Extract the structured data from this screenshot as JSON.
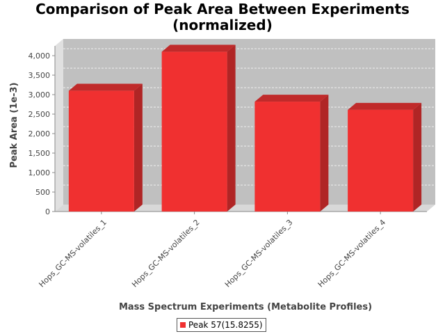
{
  "chart_data": {
    "type": "bar",
    "title_line1": "Comparison of Peak Area Between Experiments",
    "title_line2": "(normalized)",
    "xlabel": "Mass Spectrum Experiments (Metabolite Profiles)",
    "ylabel": "Peak Area (1e-3)",
    "categories": [
      "Hops_GC-MS-volatiles_1",
      "Hops_GC-MS-volatiles_2",
      "Hops_GC-MS-volatiles_3",
      "Hops_GC-MS-volatiles_4"
    ],
    "series": [
      {
        "name": "Peak 57(15.8255)",
        "values": [
          3100,
          4100,
          2820,
          2610
        ]
      }
    ],
    "ylim": [
      0,
      4250
    ],
    "yticks": [
      0,
      500,
      1000,
      1500,
      2000,
      2500,
      3000,
      3500,
      4000
    ],
    "ytick_labels": [
      "0",
      "500",
      "1,000",
      "1,500",
      "2,000",
      "2,500",
      "3,000",
      "3,500",
      "4,000"
    ],
    "grid": true,
    "legend_position": "bottom-center",
    "colors": {
      "bar_front": "#f03030",
      "bar_side": "#b02525",
      "bar_top": "#c02a2a",
      "plot_back": "#c0c0c0",
      "plot_floor": "#d8d8d8",
      "plot_wall": "#e0e0e0"
    }
  }
}
